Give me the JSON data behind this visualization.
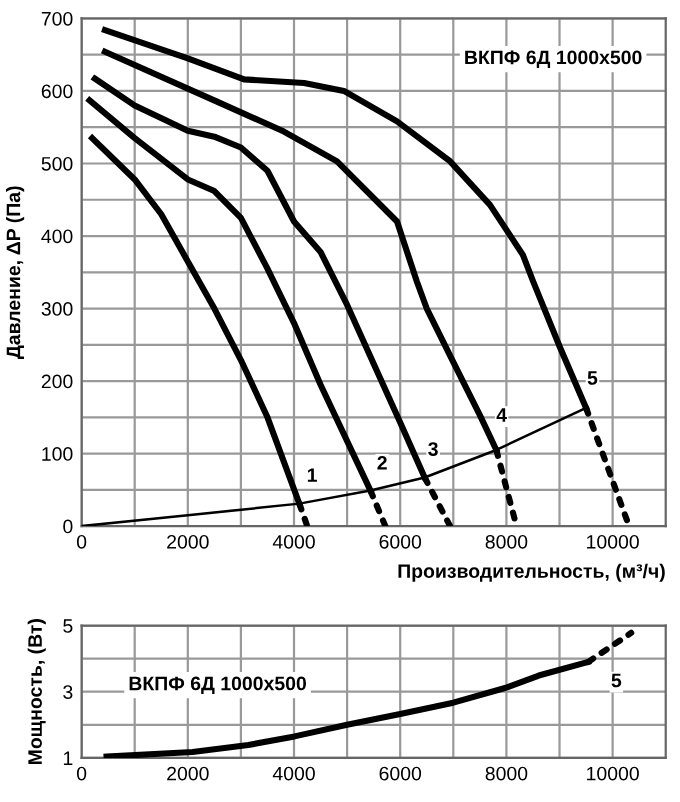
{
  "chart_data": [
    {
      "type": "line",
      "title": "ВКПФ 6Д 1000x500",
      "xlabel": "Производительность, (м³/ч)",
      "ylabel": "Давление, ΔP (Па)",
      "xlim": [
        0,
        11000
      ],
      "ylim": [
        0,
        700
      ],
      "xticks": [
        0,
        {
          "value": 1000,
          "label": null
        },
        2000,
        {
          "value": 3000,
          "label": null
        },
        4000,
        {
          "value": 5000,
          "label": null
        },
        6000,
        {
          "value": 7000,
          "label": null
        },
        8000,
        {
          "value": 9000,
          "label": null
        },
        10000
      ],
      "yticks": [
        0,
        {
          "value": 50,
          "label": null
        },
        100,
        {
          "value": 150,
          "label": null
        },
        200,
        {
          "value": 250,
          "label": null
        },
        300,
        {
          "value": 350,
          "label": null
        },
        400,
        {
          "value": 450,
          "label": null
        },
        500,
        {
          "value": 550,
          "label": null
        },
        600,
        {
          "value": 650,
          "label": null
        },
        700
      ],
      "grid": true,
      "legend": false,
      "color": "#000000",
      "series": [
        {
          "x": [
            200,
            1000,
            1500,
            2000,
            2500,
            3000,
            3500,
            4100
          ],
          "values": [
            535,
            478,
            430,
            365,
            300,
            229,
            150,
            31
          ],
          "line_style": "solid"
        },
        {
          "x": [
            4100,
            4250
          ],
          "values": [
            31,
            0
          ],
          "line_style": "dotted"
        },
        {
          "x": [
            150,
            1000,
            2000,
            2500,
            3000,
            3500,
            4000,
            4500,
            5440
          ],
          "values": [
            587,
            535,
            478,
            462,
            425,
            355,
            280,
            195,
            49
          ],
          "line_style": "solid"
        },
        {
          "x": [
            5440,
            5720
          ],
          "values": [
            49,
            0
          ],
          "line_style": "dotted"
        },
        {
          "x": [
            250,
            1000,
            2000,
            2500,
            3000,
            3500,
            4000,
            4500,
            5000,
            5500,
            6000,
            6460
          ],
          "values": [
            617,
            580,
            545,
            537,
            522,
            490,
            420,
            378,
            305,
            224,
            143,
            67
          ],
          "line_style": "solid"
        },
        {
          "x": [
            6460,
            6940
          ],
          "values": [
            67,
            0
          ],
          "line_style": "dotted"
        },
        {
          "x": [
            440,
            2560,
            3810,
            4810,
            5940,
            6310,
            6500,
            7000,
            7500,
            7810
          ],
          "values": [
            654,
            585,
            544,
            503,
            420,
            338,
            300,
            226,
            153,
            105
          ],
          "line_style": "solid"
        },
        {
          "x": [
            7810,
            8190
          ],
          "values": [
            105,
            0
          ],
          "line_style": "dotted"
        },
        {
          "x": [
            440,
            2000,
            3060,
            4190,
            4940,
            5940,
            6940,
            7690,
            8310,
            8500,
            9000,
            9500
          ],
          "values": [
            684,
            645,
            616,
            611,
            600,
            558,
            503,
            443,
            374,
            338,
            248,
            163
          ],
          "line_style": "solid"
        },
        {
          "x": [
            9500,
            10310
          ],
          "values": [
            163,
            0
          ],
          "line_style": "dotted"
        },
        {
          "x": [
            0,
            2000,
            4100,
            5440,
            6460,
            7810,
            9500
          ],
          "values": [
            0,
            15,
            31,
            49,
            67,
            105,
            163
          ],
          "line_style": "solid",
          "type": "line"
        }
      ],
      "annotations": [
        {
          "text": "1",
          "x": 4340,
          "y": 68
        },
        {
          "text": "2",
          "x": 5660,
          "y": 85
        },
        {
          "text": "3",
          "x": 6620,
          "y": 104
        },
        {
          "text": "4",
          "x": 7910,
          "y": 151
        },
        {
          "text": "5",
          "x": 9620,
          "y": 202
        }
      ]
    },
    {
      "type": "line",
      "title": "ВКПФ 6Д 1000x500",
      "ylabel": "Мощность, (Вт)",
      "xlim": [
        0,
        11000
      ],
      "ylim": [
        1,
        5
      ],
      "xticks": [
        0,
        {
          "value": 1000,
          "label": null
        },
        2000,
        {
          "value": 3000,
          "label": null
        },
        4000,
        {
          "value": 5000,
          "label": null
        },
        6000,
        {
          "value": 7000,
          "label": null
        },
        8000,
        {
          "value": 9000,
          "label": null
        },
        10000
      ],
      "yticks": [
        1,
        {
          "value": 2,
          "label": null
        },
        3,
        {
          "value": 4,
          "label": null
        },
        5
      ],
      "grid": true,
      "legend": false,
      "color": "#000000",
      "series": [
        {
          "x": [
            470,
            2090,
            3140,
            4010,
            5000,
            6000,
            7000,
            7990,
            8610,
            9540
          ],
          "values": [
            1.04,
            1.18,
            1.39,
            1.65,
            2.0,
            2.33,
            2.67,
            3.12,
            3.49,
            3.9
          ],
          "line_style": "solid"
        },
        {
          "x": [
            9540,
            10350
          ],
          "values": [
            3.9,
            4.78
          ],
          "line_style": "dotted"
        }
      ],
      "annotations": [
        {
          "text": "5",
          "x": 10070,
          "y": 3.29
        }
      ]
    }
  ]
}
